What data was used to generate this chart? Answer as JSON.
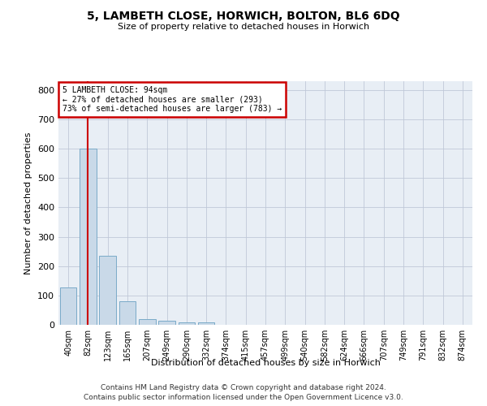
{
  "title": "5, LAMBETH CLOSE, HORWICH, BOLTON, BL6 6DQ",
  "subtitle": "Size of property relative to detached houses in Horwich",
  "xlabel": "Distribution of detached houses by size in Horwich",
  "ylabel": "Number of detached properties",
  "bar_labels": [
    "40sqm",
    "82sqm",
    "123sqm",
    "165sqm",
    "207sqm",
    "249sqm",
    "290sqm",
    "332sqm",
    "374sqm",
    "415sqm",
    "457sqm",
    "499sqm",
    "540sqm",
    "582sqm",
    "624sqm",
    "666sqm",
    "707sqm",
    "749sqm",
    "791sqm",
    "832sqm",
    "874sqm"
  ],
  "bar_values": [
    128,
    600,
    235,
    80,
    20,
    13,
    9,
    9,
    0,
    0,
    0,
    0,
    0,
    0,
    0,
    0,
    0,
    0,
    0,
    0,
    0
  ],
  "bar_color": "#c9d9e8",
  "bar_edge_color": "#7aaac8",
  "grid_color": "#c0c8d8",
  "background_color": "#e8eef5",
  "property_line_x": 1.0,
  "property_line_label": "5 LAMBETH CLOSE: 94sqm",
  "pct_smaller": 27,
  "count_smaller": 293,
  "pct_larger": 73,
  "count_larger": 783,
  "annotation_box_color": "#ffffff",
  "annotation_border_color": "#cc0000",
  "line_color": "#cc0000",
  "ylim": [
    0,
    830
  ],
  "yticks": [
    0,
    100,
    200,
    300,
    400,
    500,
    600,
    700,
    800
  ],
  "footer1": "Contains HM Land Registry data © Crown copyright and database right 2024.",
  "footer2": "Contains public sector information licensed under the Open Government Licence v3.0."
}
